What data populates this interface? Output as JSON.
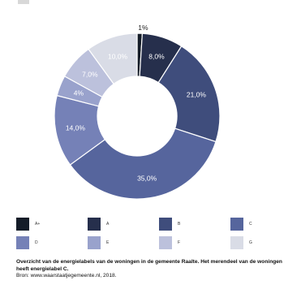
{
  "chart_data": {
    "type": "pie",
    "donut": true,
    "title": "Overzicht van de energielabels van de woningen in de gemeente Raalte. Het merendeel van de woningen heeft energielabel C.",
    "source": "Bron: www.waarstaatjegemeente.nl, 2018.",
    "categories": [
      "A+",
      "A",
      "B",
      "C",
      "D",
      "E",
      "F",
      "G"
    ],
    "values": [
      1,
      8,
      21,
      35,
      14,
      4,
      7,
      10
    ],
    "value_labels": [
      "1%",
      "8,0%",
      "21,0%",
      "35,0%",
      "14,0%",
      "4%",
      "7,0%",
      "10,0%"
    ],
    "colors": [
      "#141c28",
      "#262f4c",
      "#3f4d7c",
      "#56659d",
      "#7581b7",
      "#99a2cc",
      "#bcc1dc",
      "#d9dce6"
    ],
    "legend": "bottom"
  }
}
